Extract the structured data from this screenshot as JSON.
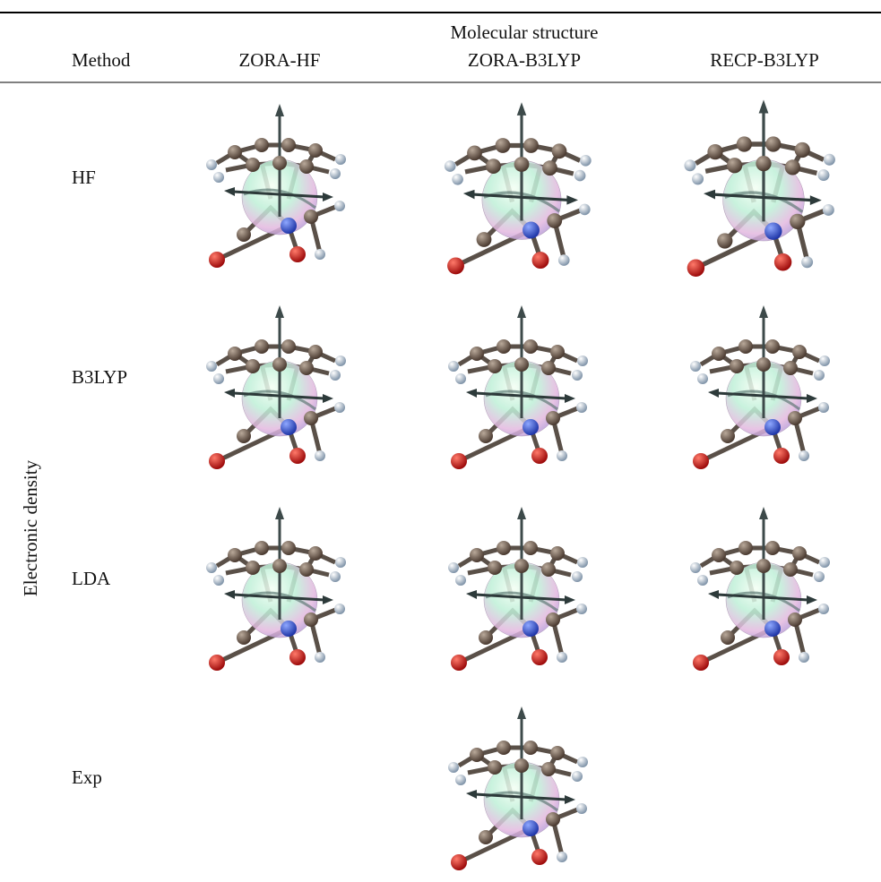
{
  "table": {
    "group_header": "Molecular structure",
    "columns": [
      "Method",
      "ZORA-HF",
      "ZORA-B3LYP",
      "RECP-B3LYP"
    ],
    "row_group": "Electronic density",
    "rows": [
      "HF",
      "B3LYP",
      "LDA",
      "Exp"
    ]
  }
}
